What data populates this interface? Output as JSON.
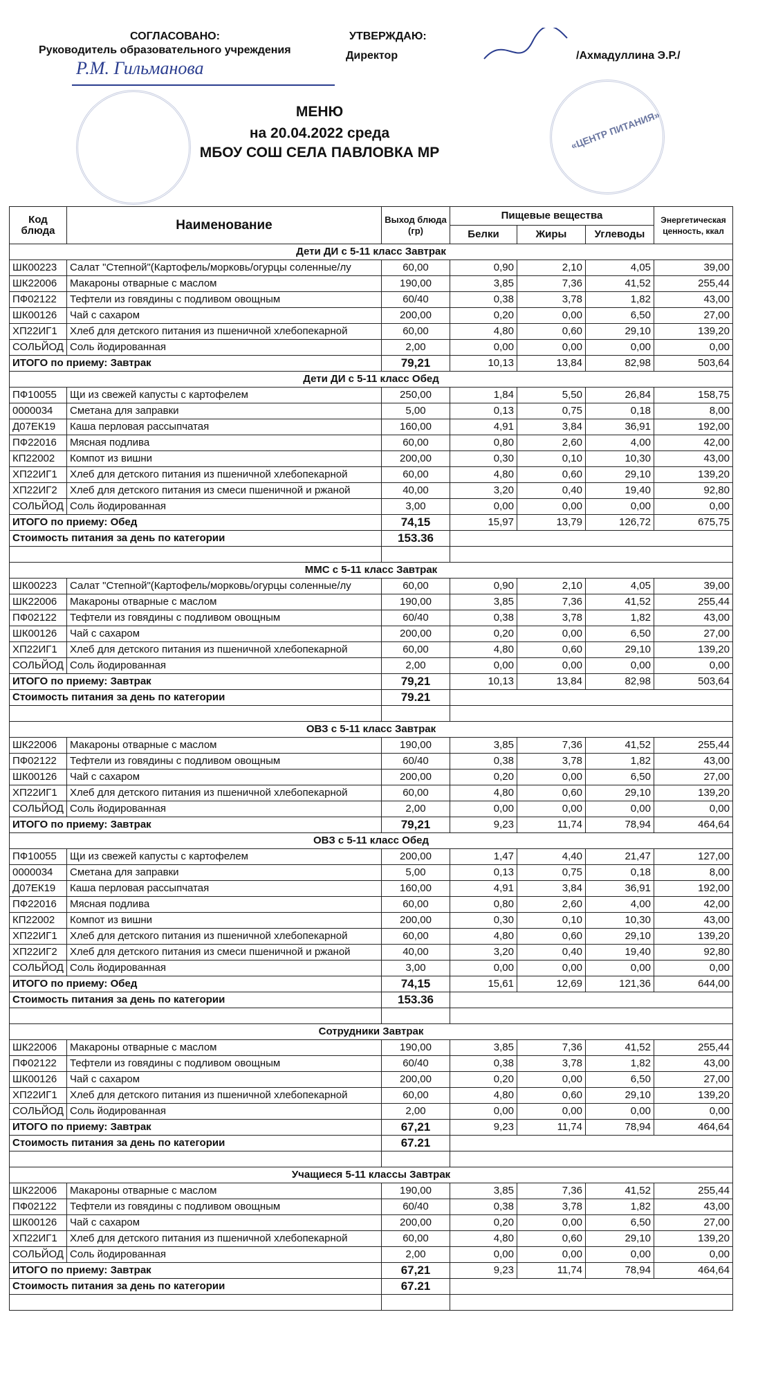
{
  "header": {
    "approved_label": "СОГЛАСОВАНО:",
    "approved_role": "Руководитель образовательного учреждения",
    "approved_signature": "Р.М. Гильманова",
    "confirm_label": "УТВЕРЖДАЮ:",
    "confirm_role": "Директор",
    "confirm_name": "/Ахмадуллина Э.Р./",
    "stamp_text": "«ЦЕНТР ПИТАНИЯ»"
  },
  "title": [
    "МЕНЮ",
    "на 20.04.2022  среда",
    "МБОУ СОШ СЕЛА ПАВЛОВКА МР"
  ],
  "table": {
    "columns": {
      "code": "Код блюда",
      "name": "Наименование",
      "out": "Выход блюда (гр)",
      "nutrients": "Пищевые вещества",
      "protein": "Белки",
      "fat": "Жиры",
      "carbs": "Углеводы",
      "energy": "Энергетическая ценность, ккал"
    },
    "sections": [
      {
        "title": "Дети ДИ с 5-11 класс Завтрак",
        "rows": [
          [
            "ШК00223",
            "Салат \"Степной\"(Картофель/морковь/огурцы соленные/лу",
            "60,00",
            "0,90",
            "2,10",
            "4,05",
            "39,00"
          ],
          [
            "ШК22006",
            "Макароны отварные с маслом",
            "190,00",
            "3,85",
            "7,36",
            "41,52",
            "255,44"
          ],
          [
            "ПФ02122",
            "Тефтели из говядины с подливом овощным",
            "60/40",
            "0,38",
            "3,78",
            "1,82",
            "43,00"
          ],
          [
            "ШК00126",
            "Чай с сахаром",
            "200,00",
            "0,20",
            "0,00",
            "6,50",
            "27,00"
          ],
          [
            "ХП22ИГ1",
            "Хлеб для детского питания из пшеничной хлебопекарной",
            "60,00",
            "4,80",
            "0,60",
            "29,10",
            "139,20"
          ],
          [
            "СОЛЬЙОД",
            "Соль йодированная",
            "2,00",
            "0,00",
            "0,00",
            "0,00",
            "0,00"
          ]
        ],
        "total": [
          "ИТОГО по приему: Завтрак",
          "79,21",
          "10,13",
          "13,84",
          "82,98",
          "503,64"
        ]
      },
      {
        "title": "Дети ДИ с 5-11 класс Обед",
        "rows": [
          [
            "ПФ10055",
            "Щи из свежей капусты с картофелем",
            "250,00",
            "1,84",
            "5,50",
            "26,84",
            "158,75"
          ],
          [
            "0000034",
            "Сметана для заправки",
            "5,00",
            "0,13",
            "0,75",
            "0,18",
            "8,00"
          ],
          [
            "Д07ЕК19",
            "Каша перловая рассыпчатая",
            "160,00",
            "4,91",
            "3,84",
            "36,91",
            "192,00"
          ],
          [
            "ПФ22016",
            "Мясная подлива",
            "60,00",
            "0,80",
            "2,60",
            "4,00",
            "42,00"
          ],
          [
            "КП22002",
            "Компот из вишни",
            "200,00",
            "0,30",
            "0,10",
            "10,30",
            "43,00"
          ],
          [
            "ХП22ИГ1",
            "Хлеб для детского питания из пшеничной хлебопекарной",
            "60,00",
            "4,80",
            "0,60",
            "29,10",
            "139,20"
          ],
          [
            "ХП22ИГ2",
            "Хлеб для детского питания из смеси пшеничной и ржаной",
            "40,00",
            "3,20",
            "0,40",
            "19,40",
            "92,80"
          ],
          [
            "СОЛЬЙОД",
            "Соль йодированная",
            "3,00",
            "0,00",
            "0,00",
            "0,00",
            "0,00"
          ]
        ],
        "total": [
          "ИТОГО по приему: Обед",
          "74,15",
          "15,97",
          "13,79",
          "126,72",
          "675,75"
        ],
        "cost": [
          "Стоимость питания за день по категории",
          "153.36"
        ]
      },
      {
        "title": "ММС с 5-11 класс Завтрак",
        "rows": [
          [
            "ШК00223",
            "Салат \"Степной\"(Картофель/морковь/огурцы соленные/лу",
            "60,00",
            "0,90",
            "2,10",
            "4,05",
            "39,00"
          ],
          [
            "ШК22006",
            "Макароны отварные с маслом",
            "190,00",
            "3,85",
            "7,36",
            "41,52",
            "255,44"
          ],
          [
            "ПФ02122",
            "Тефтели из говядины с подливом овощным",
            "60/40",
            "0,38",
            "3,78",
            "1,82",
            "43,00"
          ],
          [
            "ШК00126",
            "Чай с сахаром",
            "200,00",
            "0,20",
            "0,00",
            "6,50",
            "27,00"
          ],
          [
            "ХП22ИГ1",
            "Хлеб для детского питания из пшеничной хлебопекарной",
            "60,00",
            "4,80",
            "0,60",
            "29,10",
            "139,20"
          ],
          [
            "СОЛЬЙОД",
            "Соль йодированная",
            "2,00",
            "0,00",
            "0,00",
            "0,00",
            "0,00"
          ]
        ],
        "total": [
          "ИТОГО по приему: Завтрак",
          "79,21",
          "10,13",
          "13,84",
          "82,98",
          "503,64"
        ],
        "cost": [
          "Стоимость питания за день по категории",
          "79.21"
        ]
      },
      {
        "title": "ОВЗ с 5-11 класс Завтрак",
        "rows": [
          [
            "ШК22006",
            "Макароны отварные с маслом",
            "190,00",
            "3,85",
            "7,36",
            "41,52",
            "255,44"
          ],
          [
            "ПФ02122",
            "Тефтели из говядины с подливом овощным",
            "60/40",
            "0,38",
            "3,78",
            "1,82",
            "43,00"
          ],
          [
            "ШК00126",
            "Чай с сахаром",
            "200,00",
            "0,20",
            "0,00",
            "6,50",
            "27,00"
          ],
          [
            "ХП22ИГ1",
            "Хлеб для детского питания из пшеничной хлебопекарной",
            "60,00",
            "4,80",
            "0,60",
            "29,10",
            "139,20"
          ],
          [
            "СОЛЬЙОД",
            "Соль йодированная",
            "2,00",
            "0,00",
            "0,00",
            "0,00",
            "0,00"
          ]
        ],
        "total": [
          "ИТОГО по приему: Завтрак",
          "79,21",
          "9,23",
          "11,74",
          "78,94",
          "464,64"
        ]
      },
      {
        "title": "ОВЗ с 5-11 класс Обед",
        "rows": [
          [
            "ПФ10055",
            "Щи из свежей капусты с картофелем",
            "200,00",
            "1,47",
            "4,40",
            "21,47",
            "127,00"
          ],
          [
            "0000034",
            "Сметана для заправки",
            "5,00",
            "0,13",
            "0,75",
            "0,18",
            "8,00"
          ],
          [
            "Д07ЕК19",
            "Каша перловая рассыпчатая",
            "160,00",
            "4,91",
            "3,84",
            "36,91",
            "192,00"
          ],
          [
            "ПФ22016",
            "Мясная подлива",
            "60,00",
            "0,80",
            "2,60",
            "4,00",
            "42,00"
          ],
          [
            "КП22002",
            "Компот из вишни",
            "200,00",
            "0,30",
            "0,10",
            "10,30",
            "43,00"
          ],
          [
            "ХП22ИГ1",
            "Хлеб для детского питания из пшеничной хлебопекарной",
            "60,00",
            "4,80",
            "0,60",
            "29,10",
            "139,20"
          ],
          [
            "ХП22ИГ2",
            "Хлеб для детского питания из смеси пшеничной и ржаной",
            "40,00",
            "3,20",
            "0,40",
            "19,40",
            "92,80"
          ],
          [
            "СОЛЬЙОД",
            "Соль йодированная",
            "3,00",
            "0,00",
            "0,00",
            "0,00",
            "0,00"
          ]
        ],
        "total": [
          "ИТОГО по приему: Обед",
          "74,15",
          "15,61",
          "12,69",
          "121,36",
          "644,00"
        ],
        "cost": [
          "Стоимость питания за день по категории",
          "153.36"
        ]
      },
      {
        "title": "Сотрудники Завтрак",
        "rows": [
          [
            "ШК22006",
            "Макароны отварные с маслом",
            "190,00",
            "3,85",
            "7,36",
            "41,52",
            "255,44"
          ],
          [
            "ПФ02122",
            "Тефтели из говядины с подливом овощным",
            "60/40",
            "0,38",
            "3,78",
            "1,82",
            "43,00"
          ],
          [
            "ШК00126",
            "Чай с сахаром",
            "200,00",
            "0,20",
            "0,00",
            "6,50",
            "27,00"
          ],
          [
            "ХП22ИГ1",
            "Хлеб для детского питания из пшеничной хлебопекарной",
            "60,00",
            "4,80",
            "0,60",
            "29,10",
            "139,20"
          ],
          [
            "СОЛЬЙОД",
            "Соль йодированная",
            "2,00",
            "0,00",
            "0,00",
            "0,00",
            "0,00"
          ]
        ],
        "total": [
          "ИТОГО по приему: Завтрак",
          "67,21",
          "9,23",
          "11,74",
          "78,94",
          "464,64"
        ],
        "cost": [
          "Стоимость питания за день по категории",
          "67.21"
        ]
      },
      {
        "title": "Учащиеся 5-11 классы Завтрак",
        "rows": [
          [
            "ШК22006",
            "Макароны отварные с маслом",
            "190,00",
            "3,85",
            "7,36",
            "41,52",
            "255,44"
          ],
          [
            "ПФ02122",
            "Тефтели из говядины с подливом овощным",
            "60/40",
            "0,38",
            "3,78",
            "1,82",
            "43,00"
          ],
          [
            "ШК00126",
            "Чай с сахаром",
            "200,00",
            "0,20",
            "0,00",
            "6,50",
            "27,00"
          ],
          [
            "ХП22ИГ1",
            "Хлеб для детского питания из пшеничной хлебопекарной",
            "60,00",
            "4,80",
            "0,60",
            "29,10",
            "139,20"
          ],
          [
            "СОЛЬЙОД",
            "Соль йодированная",
            "2,00",
            "0,00",
            "0,00",
            "0,00",
            "0,00"
          ]
        ],
        "total": [
          "ИТОГО по приему: Завтрак",
          "67,21",
          "9,23",
          "11,74",
          "78,94",
          "464,64"
        ],
        "cost": [
          "Стоимость питания за день по категории",
          "67.21"
        ]
      }
    ]
  }
}
